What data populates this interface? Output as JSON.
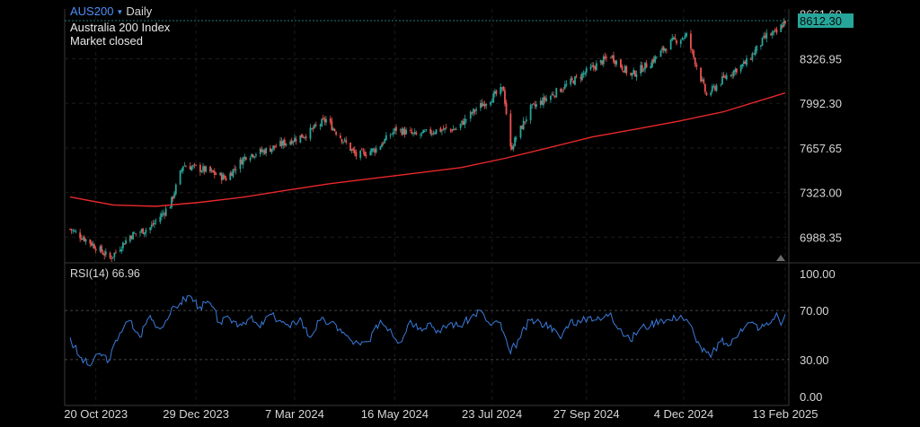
{
  "header": {
    "symbol": "AUS200",
    "timeframe": "Daily",
    "description": "Australia 200 Index",
    "status": "Market closed"
  },
  "price_axis": {
    "ticks": [
      "8661.60",
      "8326.95",
      "7992.30",
      "7657.65",
      "7323.00",
      "6988.35"
    ],
    "last_price": "8612.30"
  },
  "rsi": {
    "label": "RSI(14)",
    "value": "66.96",
    "ticks": [
      "100.00",
      "70.00",
      "30.00",
      "0.00"
    ]
  },
  "time_axis": {
    "ticks": [
      "20 Oct 2023",
      "29 Dec 2023",
      "7 Mar 2024",
      "16 May 2024",
      "23 Jul 2024",
      "27 Sep 2024",
      "4 Dec 2024",
      "13 Feb 2025"
    ]
  },
  "colors": {
    "up": "#26a69a",
    "down": "#ef5350",
    "ma": "#e8282b",
    "rsi": "#3a7bdc",
    "last_price_bg": "#26a69a",
    "symbol": "#4f8ff7"
  },
  "chart_data": [
    {
      "type": "candlestick",
      "title": "AUS200 · Daily",
      "x_range": [
        "2023-10-02",
        "2025-02-13"
      ],
      "y_range": [
        6850,
        8700
      ],
      "close_path": [
        [
          "2023-10-02",
          7050
        ],
        [
          "2023-10-16",
          6950
        ],
        [
          "2023-10-30",
          6830
        ],
        [
          "2023-11-13",
          7000
        ],
        [
          "2023-11-27",
          7060
        ],
        [
          "2023-12-11",
          7230
        ],
        [
          "2023-12-20",
          7530
        ],
        [
          "2024-01-05",
          7490
        ],
        [
          "2024-01-19",
          7430
        ],
        [
          "2024-02-02",
          7600
        ],
        [
          "2024-02-16",
          7640
        ],
        [
          "2024-03-01",
          7700
        ],
        [
          "2024-03-15",
          7760
        ],
        [
          "2024-03-29",
          7870
        ],
        [
          "2024-04-19",
          7600
        ],
        [
          "2024-05-03",
          7650
        ],
        [
          "2024-05-17",
          7800
        ],
        [
          "2024-05-31",
          7750
        ],
        [
          "2024-06-14",
          7790
        ],
        [
          "2024-06-28",
          7800
        ],
        [
          "2024-07-12",
          7950
        ],
        [
          "2024-07-31",
          8100
        ],
        [
          "2024-08-05",
          7650
        ],
        [
          "2024-08-19",
          7950
        ],
        [
          "2024-09-02",
          8050
        ],
        [
          "2024-09-16",
          8150
        ],
        [
          "2024-09-30",
          8250
        ],
        [
          "2024-10-14",
          8350
        ],
        [
          "2024-10-28",
          8200
        ],
        [
          "2024-11-11",
          8300
        ],
        [
          "2024-11-25",
          8450
        ],
        [
          "2024-12-06",
          8500
        ],
        [
          "2024-12-20",
          8050
        ],
        [
          "2025-01-03",
          8200
        ],
        [
          "2025-01-17",
          8300
        ],
        [
          "2025-01-31",
          8500
        ],
        [
          "2025-02-07",
          8520
        ],
        [
          "2025-02-13",
          8612.3
        ]
      ],
      "moving_average": [
        [
          "2023-10-02",
          7290
        ],
        [
          "2023-11-01",
          7230
        ],
        [
          "2023-12-01",
          7220
        ],
        [
          "2024-01-01",
          7250
        ],
        [
          "2024-02-01",
          7290
        ],
        [
          "2024-03-01",
          7340
        ],
        [
          "2024-04-01",
          7390
        ],
        [
          "2024-05-01",
          7430
        ],
        [
          "2024-06-01",
          7470
        ],
        [
          "2024-07-01",
          7510
        ],
        [
          "2024-08-01",
          7580
        ],
        [
          "2024-09-01",
          7660
        ],
        [
          "2024-10-01",
          7740
        ],
        [
          "2024-11-01",
          7800
        ],
        [
          "2024-12-01",
          7860
        ],
        [
          "2025-01-01",
          7930
        ],
        [
          "2025-02-13",
          8070
        ]
      ]
    },
    {
      "type": "line",
      "title": "RSI(14)",
      "y_range": [
        0,
        100
      ],
      "levels": [
        70,
        30
      ],
      "series": [
        {
          "name": "RSI(14)",
          "values": [
            [
              "2023-10-02",
              48
            ],
            [
              "2023-10-09",
              32
            ],
            [
              "2023-10-16",
              25
            ],
            [
              "2023-10-23",
              35
            ],
            [
              "2023-10-30",
              30
            ],
            [
              "2023-11-06",
              52
            ],
            [
              "2023-11-13",
              62
            ],
            [
              "2023-11-20",
              48
            ],
            [
              "2023-11-27",
              66
            ],
            [
              "2023-12-04",
              55
            ],
            [
              "2023-12-11",
              67
            ],
            [
              "2023-12-18",
              76
            ],
            [
              "2023-12-25",
              82
            ],
            [
              "2024-01-01",
              73
            ],
            [
              "2024-01-08",
              76
            ],
            [
              "2024-01-15",
              60
            ],
            [
              "2024-01-22",
              63
            ],
            [
              "2024-01-29",
              59
            ],
            [
              "2024-02-05",
              64
            ],
            [
              "2024-02-12",
              56
            ],
            [
              "2024-02-19",
              67
            ],
            [
              "2024-02-26",
              62
            ],
            [
              "2024-03-04",
              56
            ],
            [
              "2024-03-11",
              64
            ],
            [
              "2024-03-18",
              48
            ],
            [
              "2024-03-25",
              62
            ],
            [
              "2024-04-01",
              60
            ],
            [
              "2024-04-08",
              55
            ],
            [
              "2024-04-15",
              46
            ],
            [
              "2024-04-22",
              42
            ],
            [
              "2024-04-29",
              45
            ],
            [
              "2024-05-06",
              62
            ],
            [
              "2024-05-13",
              55
            ],
            [
              "2024-05-20",
              44
            ],
            [
              "2024-05-27",
              62
            ],
            [
              "2024-06-03",
              56
            ],
            [
              "2024-06-10",
              60
            ],
            [
              "2024-06-17",
              52
            ],
            [
              "2024-06-24",
              60
            ],
            [
              "2024-07-01",
              57
            ],
            [
              "2024-07-08",
              64
            ],
            [
              "2024-07-15",
              70
            ],
            [
              "2024-07-22",
              58
            ],
            [
              "2024-07-29",
              60
            ],
            [
              "2024-08-05",
              35
            ],
            [
              "2024-08-12",
              48
            ],
            [
              "2024-08-19",
              62
            ],
            [
              "2024-08-26",
              60
            ],
            [
              "2024-09-02",
              58
            ],
            [
              "2024-09-09",
              47
            ],
            [
              "2024-09-16",
              62
            ],
            [
              "2024-09-23",
              60
            ],
            [
              "2024-09-30",
              65
            ],
            [
              "2024-10-07",
              62
            ],
            [
              "2024-10-14",
              68
            ],
            [
              "2024-10-21",
              55
            ],
            [
              "2024-10-28",
              45
            ],
            [
              "2024-11-04",
              56
            ],
            [
              "2024-11-11",
              58
            ],
            [
              "2024-11-18",
              63
            ],
            [
              "2024-11-25",
              62
            ],
            [
              "2024-12-02",
              66
            ],
            [
              "2024-12-09",
              58
            ],
            [
              "2024-12-16",
              40
            ],
            [
              "2024-12-23",
              32
            ],
            [
              "2024-12-30",
              45
            ],
            [
              "2025-01-06",
              42
            ],
            [
              "2025-01-13",
              55
            ],
            [
              "2025-01-20",
              60
            ],
            [
              "2025-01-27",
              56
            ],
            [
              "2025-02-03",
              60
            ],
            [
              "2025-02-07",
              68
            ],
            [
              "2025-02-10",
              58
            ],
            [
              "2025-02-13",
              66.96
            ]
          ]
        }
      ]
    }
  ]
}
